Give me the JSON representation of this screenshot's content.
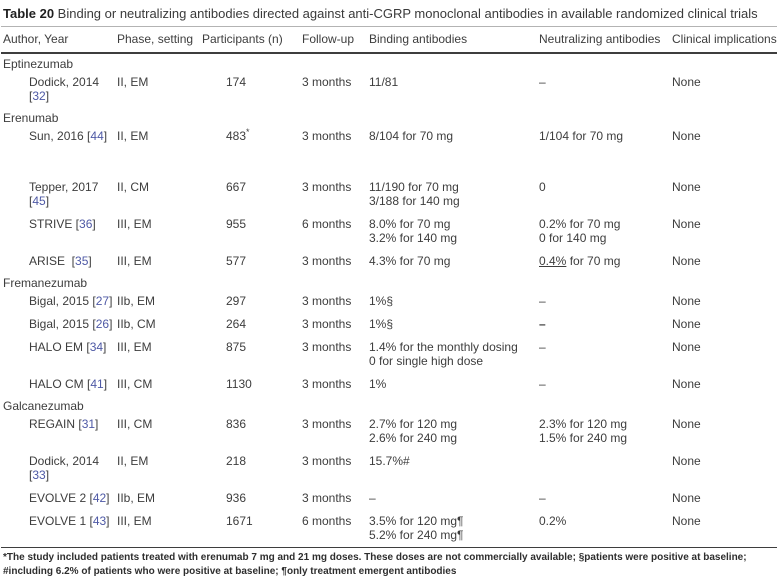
{
  "title": {
    "label": "Table 20",
    "text": " Binding or neutralizing antibodies directed against anti-CGRP monoclonal antibodies in available randomized clinical trials"
  },
  "columns": [
    "Author, Year",
    "Phase, setting",
    "Participants (n)",
    "Follow-up",
    "Binding antibodies",
    "Neutralizing antibodies",
    "Clinical implications"
  ],
  "accent_colors": {
    "reference_link": "#4e59a5",
    "body_text": "#3d3d3d"
  },
  "groups": [
    {
      "name": "Eptinezumab",
      "rows": [
        {
          "author": "Dodick, 2014",
          "ref": "32",
          "phase": "II, EM",
          "participants": "174",
          "followup": "3 months",
          "binding": [
            "11/81"
          ],
          "neutralizing": [
            "–"
          ],
          "clinical": "None"
        }
      ]
    },
    {
      "name": "Erenumab",
      "rows": [
        {
          "author": "Sun, 2016",
          "ref": "44",
          "phase": "II, EM",
          "participants": "483",
          "participants_note": "*",
          "followup": "3 months",
          "binding": [
            "8/104 for 70 mg"
          ],
          "neutralizing": [
            "1/104 for 70 mg"
          ],
          "clinical": "None",
          "gap_after": true
        },
        {
          "author": "Tepper, 2017",
          "ref": "45",
          "phase": "II, CM",
          "participants": "667",
          "followup": "3 months",
          "binding": [
            "11/190 for 70 mg",
            "3/188 for 140 mg"
          ],
          "neutralizing": [
            "0"
          ],
          "clinical": "None"
        },
        {
          "author": "STRIVE",
          "ref": "36",
          "phase": "III, EM",
          "participants": "955",
          "followup": "6 months",
          "binding": [
            "8.0% for 70 mg",
            "3.2% for 140 mg"
          ],
          "neutralizing": [
            "0.2% for 70 mg",
            "0 for 140 mg"
          ],
          "clinical": "None"
        },
        {
          "author": "ARISE ",
          "ref": "35",
          "phase": "III, EM",
          "participants": "577",
          "followup": "3 months",
          "binding": [
            "4.3% for 70 mg"
          ],
          "neutralizing": [
            [
              {
                "t": "0.4%",
                "u": true
              },
              {
                "t": " for 70 mg"
              }
            ]
          ],
          "clinical": "None"
        }
      ]
    },
    {
      "name": "Fremanezumab",
      "rows": [
        {
          "author": "Bigal, 2015",
          "ref": "27",
          "phase": "IIb, EM",
          "participants": "297",
          "followup": "3 months",
          "binding": [
            "1%§"
          ],
          "neutralizing": [
            "–"
          ],
          "clinical": "None"
        },
        {
          "author": "Bigal, 2015",
          "ref": "26",
          "phase": "IIb, CM",
          "participants": "264",
          "followup": "3 months",
          "binding": [
            "1%§"
          ],
          "neutralizing": [
            [
              {
                "t": "–",
                "b": true
              }
            ]
          ],
          "clinical": "None"
        },
        {
          "author": "HALO EM",
          "ref": "34",
          "phase": "III, EM",
          "participants": "875",
          "followup": "3 months",
          "binding": [
            "1.4% for the monthly dosing",
            "0 for single high dose"
          ],
          "neutralizing": [
            "–"
          ],
          "clinical": "None"
        },
        {
          "author": "HALO CM",
          "ref": "41",
          "phase": "III, CM",
          "participants": "1130",
          "followup": "3 months",
          "binding": [
            "1%"
          ],
          "neutralizing": [
            "–"
          ],
          "clinical": "None"
        }
      ]
    },
    {
      "name": "Galcanezumab",
      "rows": [
        {
          "author": "REGAIN",
          "ref": "31",
          "phase": "III, CM",
          "participants": "836",
          "followup": "3 months",
          "binding": [
            "2.7% for 120 mg",
            "2.6% for 240 mg"
          ],
          "neutralizing": [
            "2.3% for 120 mg",
            "1.5% for 240 mg"
          ],
          "clinical": "None"
        },
        {
          "author": "Dodick, 2014",
          "ref": "33",
          "phase": "II, EM",
          "participants": "218",
          "followup": "3 months",
          "binding": [
            "15.7%#"
          ],
          "neutralizing": [],
          "clinical": "None"
        },
        {
          "author": "EVOLVE 2",
          "ref": "42",
          "phase": "IIb, EM",
          "participants": "936",
          "followup": "3 months",
          "binding": [
            "–"
          ],
          "neutralizing": [
            "–"
          ],
          "clinical": "None"
        },
        {
          "author": "EVOLVE 1",
          "ref": "43",
          "phase": "III, EM",
          "participants": "1671",
          "followup": "6 months",
          "binding": [
            "3.5% for 120 mg¶",
            "5.2% for 240 mg¶"
          ],
          "neutralizing": [
            "0.2%"
          ],
          "clinical": "None"
        }
      ]
    }
  ],
  "footnotes": [
    "*The study included patients treated with erenumab 7 mg and 21 mg doses. These doses are not commercially available; §patients were positive at baseline;",
    "#including 6.2% of patients who were positive at baseline; ¶only treatment emergent antibodies"
  ]
}
